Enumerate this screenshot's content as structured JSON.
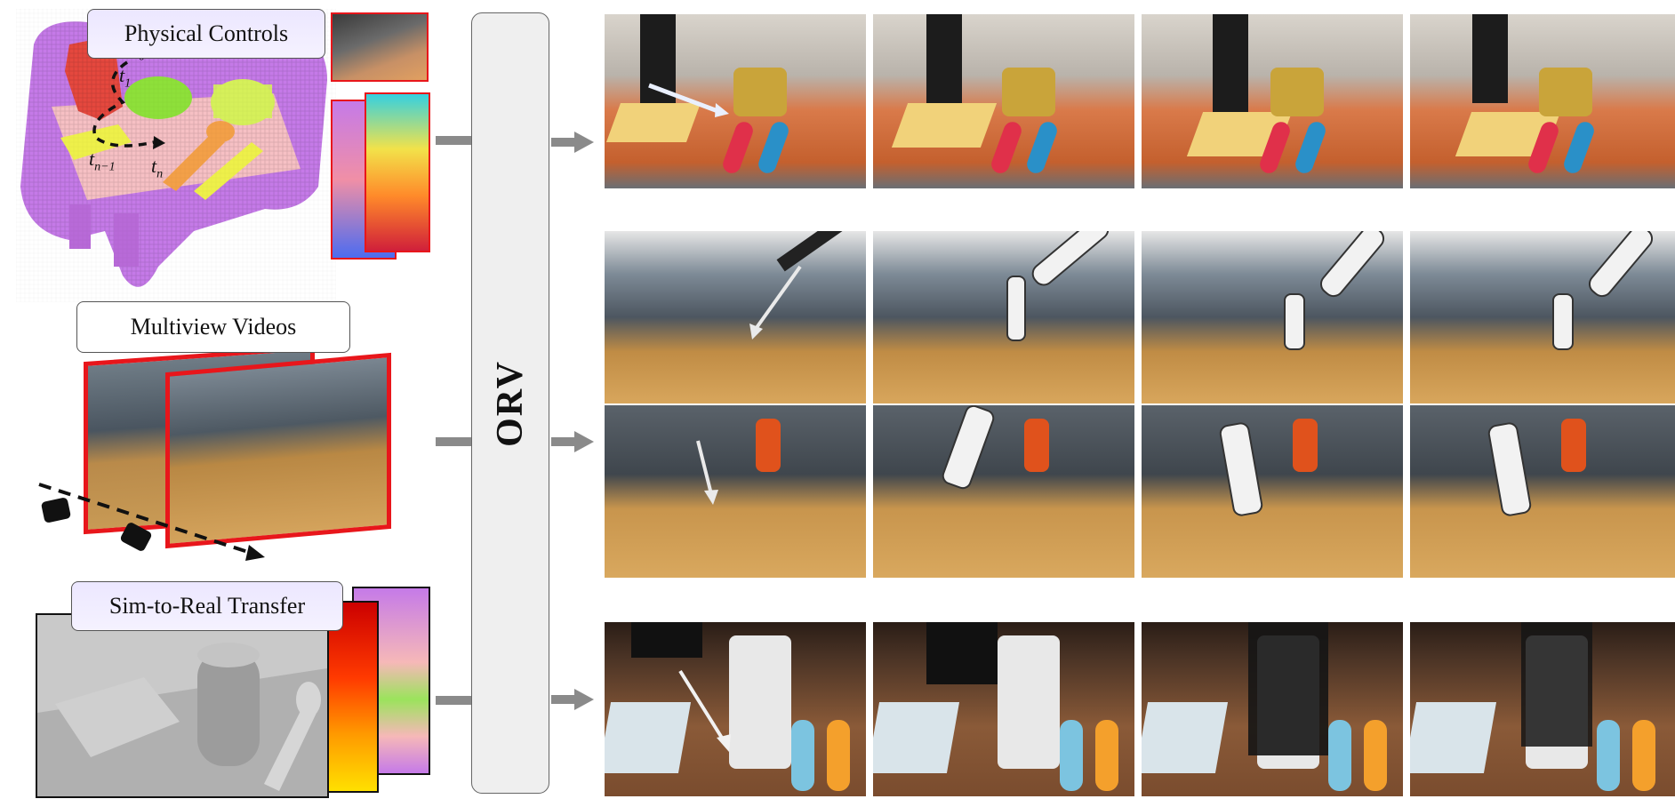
{
  "inputs": {
    "physical_controls": "Physical Controls",
    "multiview_videos": "Multiview Videos",
    "sim_to_real": "Sim-to-Real Transfer"
  },
  "time_labels": {
    "t0": "t",
    "t0_sub": "0",
    "t1": "t",
    "t1_sub": "1",
    "tn1": "t",
    "tn1_sub": "n−1",
    "tn": "t",
    "tn_sub": "n"
  },
  "model": {
    "name": "ORV"
  },
  "colors": {
    "voxel_purple": "#c57ae8",
    "voxel_pink": "#f6c0c4",
    "voxel_red": "#e5483e",
    "voxel_green": "#8ee03a",
    "voxel_yellow": "#eef04a",
    "voxel_orange": "#f3a048",
    "frame_red": "#e8161b",
    "arrow_gray": "#8a8a8a",
    "model_fill": "#efefef"
  },
  "rows": [
    {
      "scene": "kitchen-counter",
      "frames": 4
    },
    {
      "scene": "office-multiview",
      "frames": 8
    },
    {
      "scene": "table-cup",
      "frames": 4
    }
  ]
}
